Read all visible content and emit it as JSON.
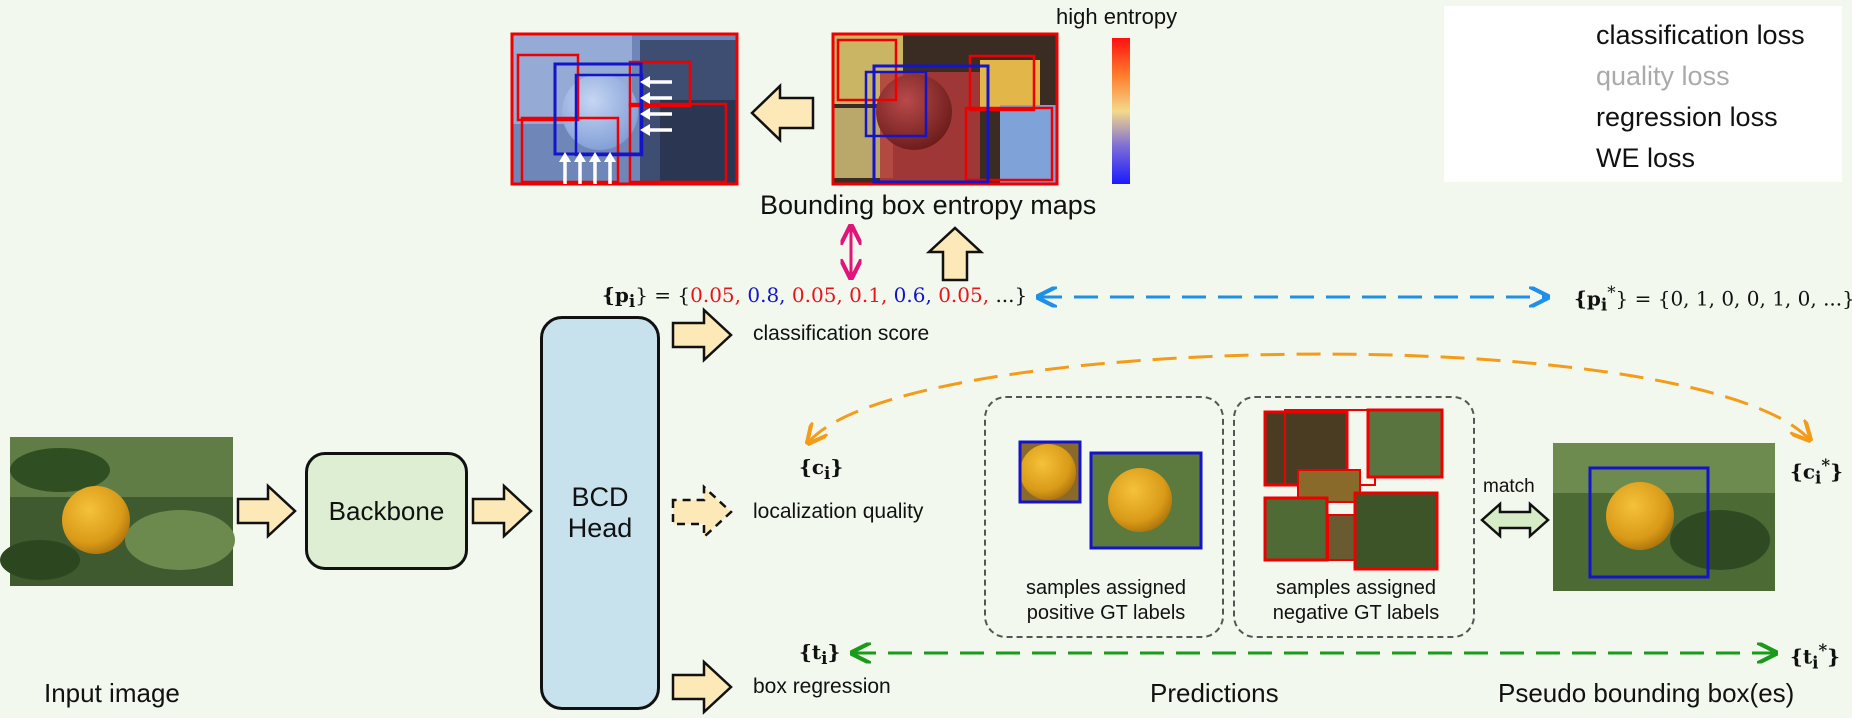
{
  "colors": {
    "classification": "#1e90e8",
    "quality": "#f39c1a",
    "regression": "#1a9a1a",
    "we": "#e0157a",
    "arrow_fill": "#fde9b8",
    "backbone_fill": "#ddeed2",
    "head_fill": "#c7e2ec",
    "high_prob": "#e8141b",
    "low_prob": "#1414c8"
  },
  "legend": {
    "classification": "classification loss",
    "quality": "quality loss",
    "regression": "regression loss",
    "we": "WE loss"
  },
  "entropy": {
    "colorbar_label": "high entropy",
    "caption": "Bounding box entropy maps"
  },
  "scores": {
    "pred_lhs": "{p",
    "pred_sub": "i",
    "pred_eq": "} = {",
    "values": [
      {
        "v": "0.05,",
        "kind": "high"
      },
      {
        "v": "0.8,",
        "kind": "low"
      },
      {
        "v": "0.05,",
        "kind": "high"
      },
      {
        "v": "0.1,",
        "kind": "high"
      },
      {
        "v": "0.6,",
        "kind": "low"
      },
      {
        "v": "0.05,",
        "kind": "high"
      },
      {
        "v": "...}",
        "kind": "plain"
      }
    ],
    "target": "} = {0,  1,  0,  0,  1,  0,  ...}",
    "target_lhs": "{p",
    "target_sub": "i",
    "target_sup": "*"
  },
  "labels": {
    "input_image": "Input image",
    "backbone": "Backbone",
    "head_line1": "BCD",
    "head_line2": "Head",
    "classification_score": "classification score",
    "localization_quality": "localization quality",
    "box_regression": "box regression",
    "predictions": "Predictions",
    "pseudo_boxes": "Pseudo bounding box(es)",
    "match": "match",
    "pos_line1": "samples assigned",
    "pos_line2": "positive GT labels",
    "neg_line1": "samples assigned",
    "neg_line2": "negative GT labels"
  },
  "math": {
    "c_left": "{c",
    "c_sub": "i",
    "c_close": "}",
    "c_star": "*",
    "t_left": "{t",
    "t_sub": "i",
    "t_close": "}",
    "t_star": "*"
  }
}
